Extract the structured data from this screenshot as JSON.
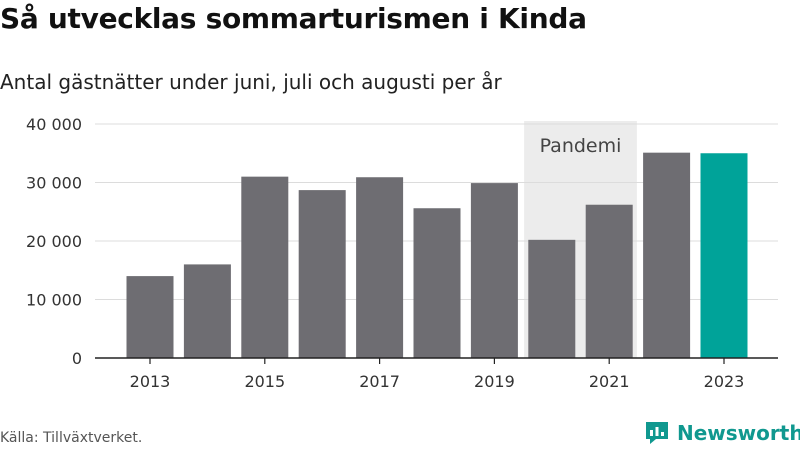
{
  "header": {
    "title": "Så utvecklas sommarturismen i Kinda",
    "subtitle": "Antal gästnätter under juni, juli och augusti per år"
  },
  "footer": {
    "source": "Källa: Tillväxtverket.",
    "brand_name": "Newsworthy",
    "brand_icon": "newsworthy-logo-icon"
  },
  "colors": {
    "bar": "#6e6d72",
    "highlight": "#00a399",
    "band": "#ececec",
    "grid": "#dcdcdc",
    "brand": "#10988f"
  },
  "chart_data": {
    "type": "bar",
    "categories": [
      "2013",
      "2014",
      "2015",
      "2016",
      "2017",
      "2018",
      "2019",
      "2020",
      "2021",
      "2022",
      "2023"
    ],
    "values": [
      14000,
      16000,
      31000,
      28700,
      30900,
      25600,
      29900,
      20200,
      26200,
      35100,
      35000
    ],
    "highlight_category": "2023",
    "x_tick_labels": [
      "2013",
      "2015",
      "2017",
      "2019",
      "2021",
      "2023"
    ],
    "y_tick_labels": [
      "0",
      "10 000",
      "20 000",
      "30 000",
      "40 000"
    ],
    "y_ticks": [
      0,
      10000,
      20000,
      30000,
      40000
    ],
    "ylim": [
      0,
      40000
    ],
    "grid": true,
    "annotation": {
      "label": "Pandemi",
      "categories": [
        "2020",
        "2021"
      ]
    }
  }
}
